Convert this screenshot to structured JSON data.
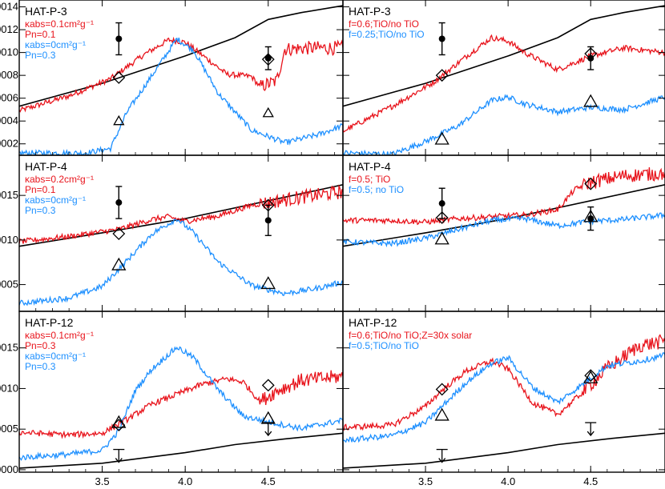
{
  "colors": {
    "red": "#e8141c",
    "blue": "#1e90ff",
    "black": "#000000"
  },
  "chart_data": [
    {
      "type": "line",
      "title": "HAT-P-3",
      "legend": [
        {
          "text": "κabs=0.1cm²g⁻¹",
          "color": "#e8141c"
        },
        {
          "text": "Pn=0.1",
          "color": "#e8141c"
        },
        {
          "text": "κabs=0cm²g⁻¹",
          "color": "#1e90ff"
        },
        {
          "text": "Pn=0.3",
          "color": "#1e90ff"
        }
      ],
      "xlim": [
        3.0,
        4.95
      ],
      "ylim": [
        0.0001,
        0.00146
      ],
      "yticks": [
        "0.0002",
        "0.0004",
        "0.0006",
        "0.0008",
        "0.0010",
        "0.0012",
        "0.0014"
      ],
      "series": [
        {
          "color": "#000000",
          "x": [
            3.0,
            3.5,
            4.0,
            4.3,
            4.5,
            4.7,
            4.95
          ],
          "y": [
            0.00053,
            0.00073,
            0.00097,
            0.00113,
            0.00129,
            0.00135,
            0.00141
          ]
        },
        {
          "color": "#e8141c",
          "noisy": true,
          "x": [
            3.0,
            3.3,
            3.55,
            3.75,
            3.9,
            4.0,
            4.1,
            4.25,
            4.4,
            4.45,
            4.55,
            4.6,
            4.75,
            4.95
          ],
          "y": [
            0.00049,
            0.00062,
            0.00077,
            0.00098,
            0.00111,
            0.00109,
            0.00098,
            0.00081,
            0.00079,
            0.0007,
            0.00075,
            0.00103,
            0.00104,
            0.00104
          ]
        },
        {
          "color": "#1e90ff",
          "noisy": true,
          "x": [
            3.0,
            3.4,
            3.55,
            3.65,
            3.8,
            3.95,
            4.05,
            4.2,
            4.4,
            4.6,
            4.8,
            4.95
          ],
          "y": [
            0.00012,
            0.00012,
            0.00016,
            0.00048,
            0.0008,
            0.00112,
            0.00102,
            0.00064,
            0.00032,
            0.00021,
            0.00028,
            0.00036
          ]
        }
      ],
      "observed": [
        {
          "x": 3.6,
          "y": 0.00112,
          "err": 0.00014
        },
        {
          "x": 4.5,
          "y": 0.00095,
          "err": 0.0001
        }
      ],
      "diamonds": [
        {
          "x": 3.6,
          "y": 0.00078
        },
        {
          "x": 4.5,
          "y": 0.00094
        }
      ],
      "triangles": [
        {
          "x": 3.6,
          "y": 0.0004,
          "size": "small"
        },
        {
          "x": 4.5,
          "y": 0.00047,
          "size": "small"
        }
      ]
    },
    {
      "type": "line",
      "title": "HAT-P-3",
      "legend": [
        {
          "text": "f=0.6;TiO/no TiO",
          "color": "#e8141c"
        },
        {
          "text": "f=0.25;TiO/no TiO",
          "color": "#1e90ff"
        }
      ],
      "xlim": [
        3.0,
        4.95
      ],
      "ylim": [
        0.0001,
        0.00146
      ],
      "series": [
        {
          "color": "#000000",
          "x": [
            3.0,
            3.5,
            4.0,
            4.3,
            4.5,
            4.7,
            4.95
          ],
          "y": [
            0.00053,
            0.00073,
            0.00097,
            0.00113,
            0.00129,
            0.00135,
            0.00141
          ]
        },
        {
          "color": "#e8141c",
          "noisy": true,
          "x": [
            3.0,
            3.3,
            3.55,
            3.75,
            3.9,
            4.0,
            4.1,
            4.3,
            4.5,
            4.7,
            4.95
          ],
          "y": [
            0.00031,
            0.00053,
            0.00074,
            0.00097,
            0.00113,
            0.0011,
            0.001,
            0.00085,
            0.00097,
            0.00104,
            0.001
          ]
        },
        {
          "color": "#1e90ff",
          "noisy": true,
          "x": [
            3.0,
            3.3,
            3.5,
            3.7,
            3.9,
            4.0,
            4.1,
            4.3,
            4.5,
            4.7,
            4.95
          ],
          "y": [
            0.00012,
            0.00011,
            0.00022,
            0.00036,
            0.00058,
            0.00061,
            0.00055,
            0.00048,
            0.00052,
            0.0005,
            0.00061
          ]
        }
      ],
      "observed": [
        {
          "x": 3.6,
          "y": 0.00112,
          "err": 0.00014
        },
        {
          "x": 4.5,
          "y": 0.00095,
          "err": 0.0001
        }
      ],
      "diamonds": [
        {
          "x": 3.6,
          "y": 0.0008
        },
        {
          "x": 4.5,
          "y": 0.00099
        }
      ],
      "triangles": [
        {
          "x": 3.6,
          "y": 0.00024,
          "size": "big"
        },
        {
          "x": 4.5,
          "y": 0.00057,
          "size": "big"
        }
      ]
    },
    {
      "type": "line",
      "title": "HAT-P-4",
      "legend": [
        {
          "text": "κabs=0.2cm²g⁻¹",
          "color": "#e8141c"
        },
        {
          "text": "Pn=0.1",
          "color": "#e8141c"
        },
        {
          "text": "κabs=0cm²g⁻¹",
          "color": "#1e90ff"
        },
        {
          "text": "Pn=0.3",
          "color": "#1e90ff"
        }
      ],
      "xlim": [
        3.0,
        4.95
      ],
      "ylim": [
        0.0002,
        0.00195
      ],
      "yticks": [
        "0.0005",
        "0.0010",
        "0.0015"
      ],
      "series": [
        {
          "color": "#000000",
          "x": [
            3.0,
            3.5,
            4.0,
            4.5,
            4.95
          ],
          "y": [
            0.00093,
            0.00108,
            0.00124,
            0.00144,
            0.00162
          ]
        },
        {
          "color": "#e8141c",
          "noisy": true,
          "x": [
            3.0,
            3.3,
            3.6,
            3.8,
            3.9,
            4.0,
            4.2,
            4.4,
            4.5,
            4.7,
            4.95
          ],
          "y": [
            0.00098,
            0.00104,
            0.00112,
            0.00123,
            0.00126,
            0.00121,
            0.00127,
            0.00139,
            0.00142,
            0.00148,
            0.00154
          ]
        },
        {
          "color": "#1e90ff",
          "noisy": true,
          "x": [
            3.0,
            3.3,
            3.5,
            3.65,
            3.8,
            3.95,
            4.05,
            4.2,
            4.4,
            4.6,
            4.8,
            4.95
          ],
          "y": [
            0.00029,
            0.00035,
            0.00048,
            0.00077,
            0.00107,
            0.00124,
            0.00108,
            0.00075,
            0.00049,
            0.0004,
            0.00046,
            0.00053
          ]
        }
      ],
      "observed": [
        {
          "x": 3.6,
          "y": 0.00142,
          "err": 0.00018
        },
        {
          "x": 4.5,
          "y": 0.00122,
          "err": 0.00017
        }
      ],
      "diamonds": [
        {
          "x": 3.6,
          "y": 0.00107
        },
        {
          "x": 4.5,
          "y": 0.00139
        }
      ],
      "triangles": [
        {
          "x": 3.6,
          "y": 0.00072,
          "size": "big"
        },
        {
          "x": 4.5,
          "y": 0.00051,
          "size": "big"
        }
      ]
    },
    {
      "type": "line",
      "title": "HAT-P-4",
      "legend": [
        {
          "text": "f=0.5; TiO",
          "color": "#e8141c"
        },
        {
          "text": "f=0.5; no TiO",
          "color": "#1e90ff"
        }
      ],
      "xlim": [
        3.0,
        4.95
      ],
      "ylim": [
        0.0002,
        0.00195
      ],
      "series": [
        {
          "color": "#000000",
          "x": [
            3.0,
            3.5,
            4.0,
            4.5,
            4.95
          ],
          "y": [
            0.00093,
            0.00108,
            0.00124,
            0.00144,
            0.00162
          ]
        },
        {
          "color": "#e8141c",
          "noisy": true,
          "x": [
            3.0,
            3.3,
            3.5,
            3.7,
            3.9,
            4.1,
            4.3,
            4.4,
            4.5,
            4.7,
            4.95
          ],
          "y": [
            0.00122,
            0.00122,
            0.0012,
            0.00124,
            0.00126,
            0.00128,
            0.00134,
            0.00156,
            0.00165,
            0.00172,
            0.00175
          ]
        },
        {
          "color": "#1e90ff",
          "noisy": true,
          "x": [
            3.0,
            3.3,
            3.5,
            3.7,
            3.9,
            4.1,
            4.3,
            4.5,
            4.7,
            4.95
          ],
          "y": [
            0.00098,
            0.00096,
            0.00102,
            0.00112,
            0.00122,
            0.00124,
            0.00116,
            0.00121,
            0.00123,
            0.00128
          ]
        }
      ],
      "observed": [
        {
          "x": 3.6,
          "y": 0.00141,
          "err": 0.00017
        },
        {
          "x": 4.5,
          "y": 0.00124,
          "err": 0.00013
        }
      ],
      "diamonds": [
        {
          "x": 3.6,
          "y": 0.00125
        },
        {
          "x": 4.5,
          "y": 0.00163
        }
      ],
      "triangles": [
        {
          "x": 3.6,
          "y": 0.00101,
          "size": "big"
        },
        {
          "x": 4.5,
          "y": 0.00126,
          "size": "big"
        }
      ]
    },
    {
      "type": "line",
      "title": "HAT-P-12",
      "legend": [
        {
          "text": "κabs=0.1cm²g⁻¹",
          "color": "#e8141c"
        },
        {
          "text": "Pn=0.3",
          "color": "#e8141c"
        },
        {
          "text": "κabs=0cm²g⁻¹",
          "color": "#1e90ff"
        },
        {
          "text": "Pn=0.3",
          "color": "#1e90ff"
        }
      ],
      "xlim": [
        3.0,
        4.95
      ],
      "ylim": [
        -3e-05,
        0.00195
      ],
      "yticks": [
        "0.0000",
        "0.0005",
        "0.0010",
        "0.0015"
      ],
      "series": [
        {
          "color": "#000000",
          "x": [
            3.0,
            3.5,
            4.0,
            4.3,
            4.6,
            4.95
          ],
          "y": [
            2e-05,
            8e-05,
            0.00021,
            0.00031,
            0.00038,
            0.00045
          ]
        },
        {
          "color": "#e8141c",
          "noisy": true,
          "x": [
            3.0,
            3.3,
            3.5,
            3.65,
            3.8,
            3.95,
            4.1,
            4.25,
            4.35,
            4.45,
            4.55,
            4.7,
            4.95
          ],
          "y": [
            0.00046,
            0.00043,
            0.00045,
            0.00062,
            0.00081,
            0.00093,
            0.00105,
            0.00112,
            0.00108,
            0.00084,
            0.00097,
            0.0011,
            0.00115
          ]
        },
        {
          "color": "#1e90ff",
          "noisy": true,
          "x": [
            3.0,
            3.3,
            3.5,
            3.6,
            3.7,
            3.8,
            3.95,
            4.05,
            4.2,
            4.35,
            4.5,
            4.7,
            4.95
          ],
          "y": [
            0.00015,
            0.00019,
            0.00024,
            0.00048,
            0.00098,
            0.00124,
            0.00151,
            0.00138,
            0.00098,
            0.00066,
            0.00059,
            0.00051,
            0.00061
          ]
        }
      ],
      "observed": [],
      "diamonds": [
        {
          "x": 3.6,
          "y": 0.00055
        },
        {
          "x": 4.5,
          "y": 0.00104
        }
      ],
      "triangles": [
        {
          "x": 3.6,
          "y": 0.00058,
          "size": "big"
        },
        {
          "x": 4.5,
          "y": 0.00063,
          "size": "big"
        }
      ],
      "upper_limits": [
        {
          "x": 3.6,
          "y": 0.00025
        },
        {
          "x": 4.5,
          "y": 0.00058
        }
      ]
    },
    {
      "type": "line",
      "title": "HAT-P-12",
      "legend": [
        {
          "text": "f=0.6;TiO/no TiO;Z=30x solar",
          "color": "#e8141c"
        },
        {
          "text": "f=0.5;TiO/no TiO",
          "color": "#1e90ff"
        }
      ],
      "xlim": [
        3.0,
        4.95
      ],
      "ylim": [
        -3e-05,
        0.00195
      ],
      "series": [
        {
          "color": "#000000",
          "x": [
            3.0,
            3.5,
            4.0,
            4.3,
            4.6,
            4.95
          ],
          "y": [
            2e-05,
            8e-05,
            0.00021,
            0.00031,
            0.00038,
            0.00045
          ]
        },
        {
          "color": "#e8141c",
          "noisy": true,
          "x": [
            3.0,
            3.3,
            3.5,
            3.6,
            3.75,
            3.9,
            4.0,
            4.15,
            4.3,
            4.45,
            4.6,
            4.8,
            4.95
          ],
          "y": [
            0.00052,
            0.00055,
            0.00078,
            0.00098,
            0.00122,
            0.00134,
            0.00124,
            0.00082,
            0.00068,
            0.00095,
            0.00125,
            0.00153,
            0.00158
          ]
        },
        {
          "color": "#1e90ff",
          "noisy": true,
          "x": [
            3.0,
            3.3,
            3.5,
            3.6,
            3.75,
            3.9,
            4.0,
            4.15,
            4.3,
            4.45,
            4.6,
            4.8,
            4.95
          ],
          "y": [
            0.00036,
            0.00042,
            0.00058,
            0.00078,
            0.00108,
            0.00131,
            0.00138,
            0.00101,
            0.00083,
            0.00105,
            0.00128,
            0.00134,
            0.00141
          ]
        }
      ],
      "observed": [],
      "diamonds": [
        {
          "x": 3.6,
          "y": 0.00099
        },
        {
          "x": 4.5,
          "y": 0.00116
        }
      ],
      "triangles": [
        {
          "x": 3.6,
          "y": 0.00067,
          "size": "big"
        },
        {
          "x": 4.5,
          "y": 0.00113,
          "size": "big"
        }
      ],
      "upper_limits": [
        {
          "x": 3.6,
          "y": 0.00025
        },
        {
          "x": 4.5,
          "y": 0.00058
        }
      ]
    }
  ],
  "xticks": [
    "3.5",
    "4.0",
    "4.5"
  ]
}
